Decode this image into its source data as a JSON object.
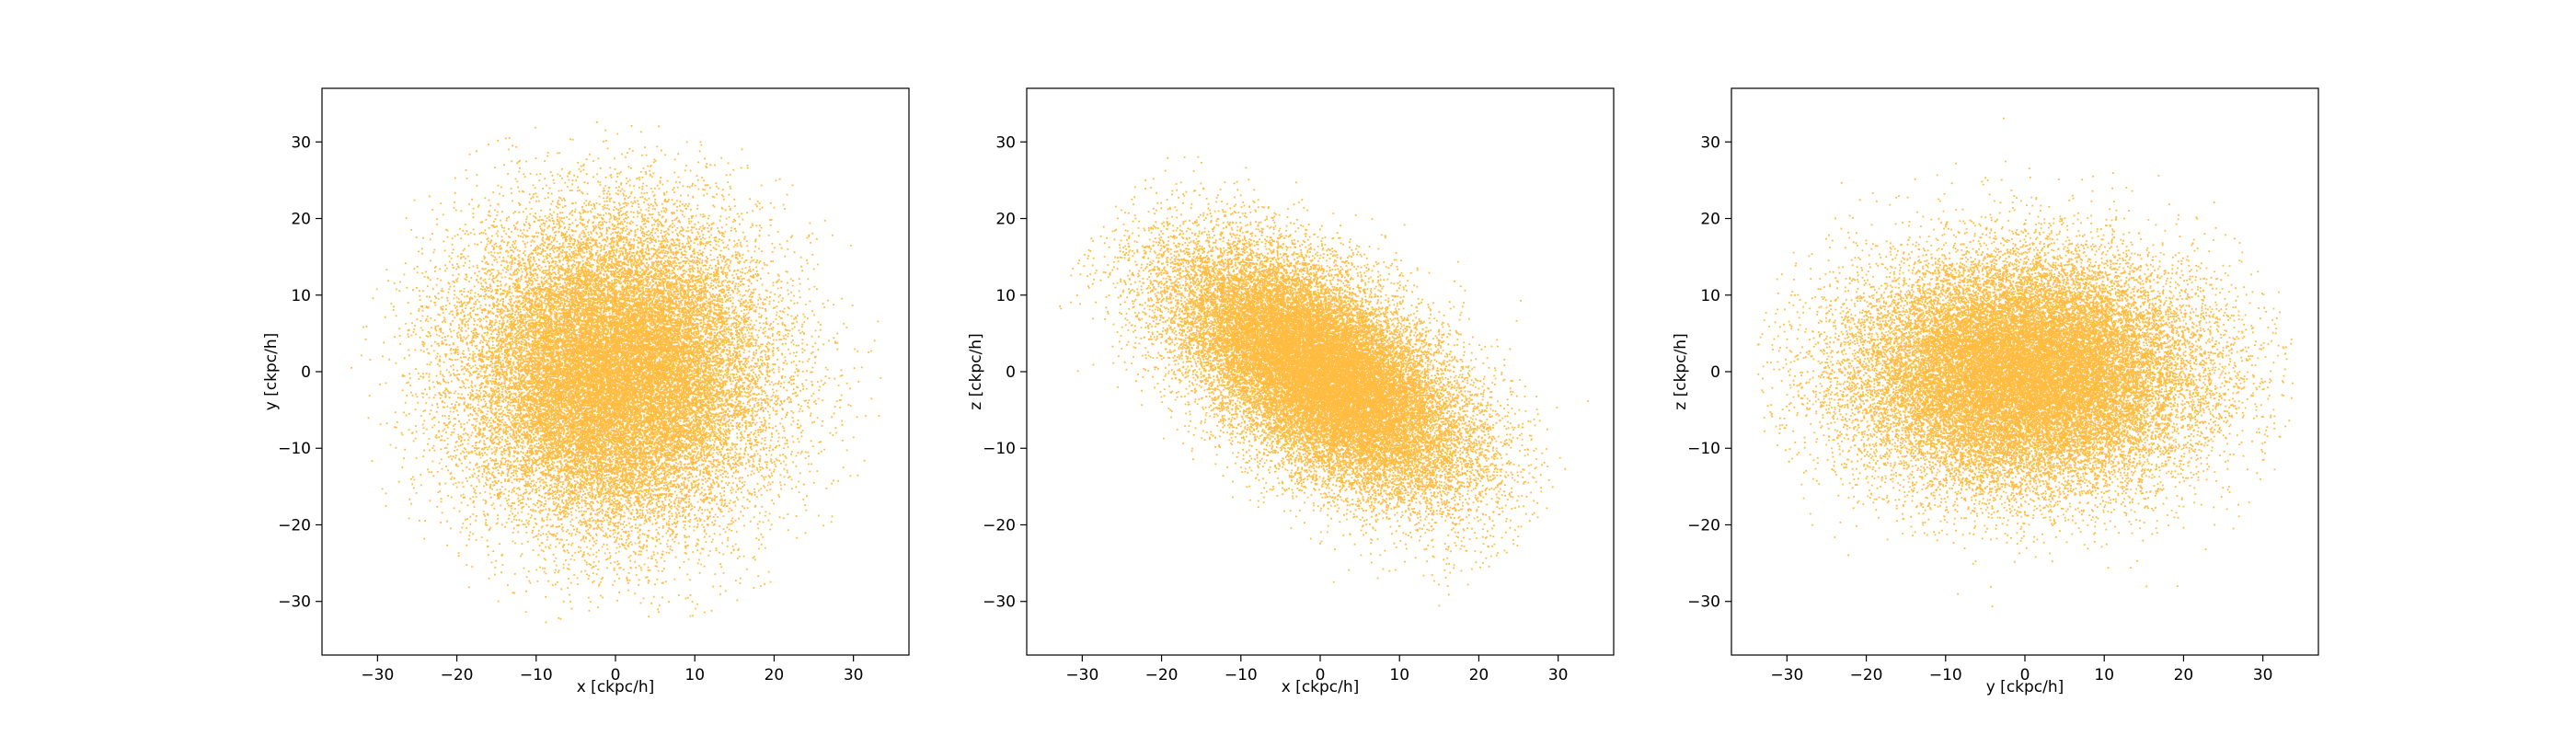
{
  "chart_data": [
    {
      "type": "scatter",
      "xlabel": "x [ckpc/h]",
      "ylabel": "y [ckpc/h]",
      "xlim": [
        -37,
        37
      ],
      "ylim": [
        -37,
        37
      ],
      "xticks": [
        -30,
        -20,
        -10,
        0,
        10,
        20,
        30
      ],
      "yticks": [
        -30,
        -20,
        -10,
        0,
        10,
        20,
        30
      ],
      "grid": false,
      "marker_color": "#ffa500",
      "distribution": {
        "n_points": 30000,
        "sigma_major": 10.0,
        "sigma_minor": 9.5,
        "angle_deg": 90,
        "max_radius": 34
      }
    },
    {
      "type": "scatter",
      "xlabel": "x [ckpc/h]",
      "ylabel": "z [ckpc/h]",
      "xlim": [
        -37,
        37
      ],
      "ylim": [
        -37,
        37
      ],
      "xticks": [
        -30,
        -20,
        -10,
        0,
        10,
        20,
        30
      ],
      "yticks": [
        -30,
        -20,
        -10,
        0,
        10,
        20,
        30
      ],
      "grid": false,
      "marker_color": "#ffa500",
      "distribution": {
        "n_points": 30000,
        "sigma_major": 11.0,
        "sigma_minor": 5.5,
        "angle_deg": -38,
        "max_radius": 34
      }
    },
    {
      "type": "scatter",
      "xlabel": "y [ckpc/h]",
      "ylabel": "z [ckpc/h]",
      "xlim": [
        -37,
        37
      ],
      "ylim": [
        -37,
        37
      ],
      "xticks": [
        -30,
        -20,
        -10,
        0,
        10,
        20,
        30
      ],
      "yticks": [
        -30,
        -20,
        -10,
        0,
        10,
        20,
        30
      ],
      "grid": false,
      "marker_color": "#ffa500",
      "distribution": {
        "n_points": 30000,
        "sigma_major": 11.0,
        "sigma_minor": 7.5,
        "angle_deg": 0,
        "max_radius": 34
      }
    }
  ]
}
